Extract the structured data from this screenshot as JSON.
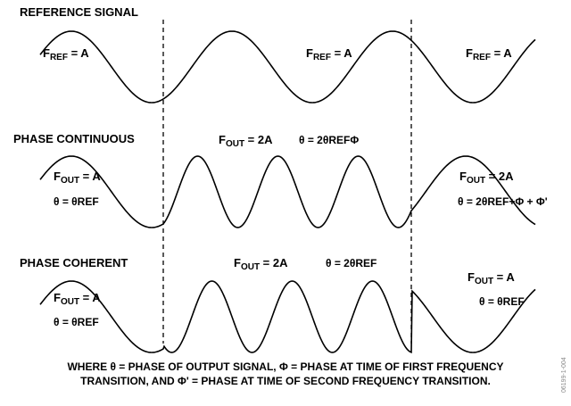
{
  "reference": {
    "title": "REFERENCE SIGNAL",
    "labels": [
      {
        "symbol": "F",
        "sub": "REF",
        "rest": " = A"
      },
      {
        "symbol": "F",
        "sub": "REF",
        "rest": " = A"
      },
      {
        "symbol": "F",
        "sub": "REF",
        "rest": " = A"
      }
    ]
  },
  "continuous": {
    "title": "PHASE CONTINUOUS",
    "left": {
      "symbol": "F",
      "sub": "OUT",
      "rest": " = A",
      "theta": "θ = θREF"
    },
    "middle": {
      "symbol": "F",
      "sub": "OUT",
      "rest": " = 2A",
      "theta": "θ = 2θREFΦ"
    },
    "right": {
      "symbol": "F",
      "sub": "OUT",
      "rest": " = 2A",
      "theta": "θ = 2θREF+Φ + Φ'"
    }
  },
  "coherent": {
    "title": "PHASE COHERENT",
    "left": {
      "symbol": "F",
      "sub": "OUT",
      "rest": " = A",
      "theta": "θ = θREF"
    },
    "middle": {
      "symbol": "F",
      "sub": "OUT",
      "rest": " = 2A",
      "theta": "θ = 2θREF"
    },
    "right": {
      "symbol": "F",
      "sub": "OUT",
      "rest": " = A",
      "theta": "θ = θREF"
    }
  },
  "caption": [
    "WHERE θ = PHASE OF OUTPUT SIGNAL, Φ = PHASE AT TIME OF FIRST FREQUENCY",
    "TRANSITION, AND Φ' = PHASE AT TIME OF SECOND FREQUENCY TRANSITION."
  ],
  "figure_id": "06199-1-004"
}
